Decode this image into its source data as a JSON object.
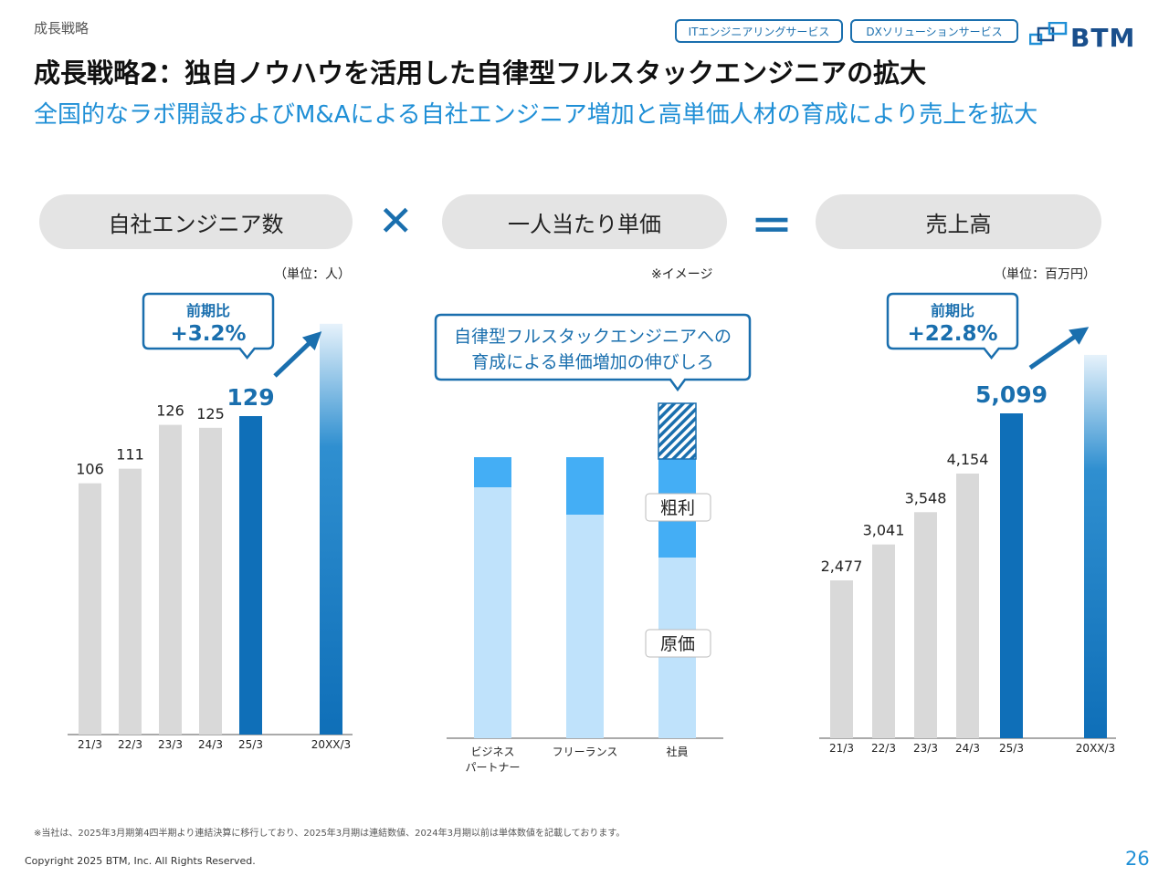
{
  "header": {
    "section_label": "成長戦略",
    "tags": [
      "ITエンジニアリングサービス",
      "DXソリューションサービス"
    ],
    "logo_text": "BTM",
    "title": "成長戦略2：独自ノウハウを活用した自律型フルスタックエンジニアの拡大",
    "subtitle": "全国的なラボ開設およびM&Aによる自社エンジニア増加と高単価人材の育成により売上を拡大"
  },
  "formula": {
    "left_label": "自社エンジニア数",
    "times_symbol": "✕",
    "middle_label": "一人当たり単価",
    "equals_symbol": "＝",
    "right_label": "売上高"
  },
  "colors": {
    "gray_bar": "#d9d9d9",
    "blue_bar": "#0f6fb8",
    "light_blue": "#bfe2fb",
    "mid_blue": "#44aef5",
    "accent_text": "#1f8fd6",
    "dark_blue": "#1a6fae"
  },
  "chart_data": [
    {
      "type": "bar",
      "unit_label": "（単位：人）",
      "categories": [
        "21/3",
        "22/3",
        "23/3",
        "24/3",
        "25/3",
        "20XX/3"
      ],
      "values": [
        106,
        111,
        126,
        125,
        129,
        null
      ],
      "value_labels": [
        "106",
        "111",
        "126",
        "125",
        "129",
        ""
      ],
      "highlight_index": 4,
      "target_index": 5,
      "callout_line1": "前期比",
      "callout_line2": "+3.2%"
    },
    {
      "type": "bar",
      "stacked": true,
      "note": "※イメージ",
      "categories": [
        "ビジネス\nパートナー",
        "フリーランス",
        "社員"
      ],
      "category_lines": [
        [
          "ビジネス",
          "パートナー"
        ],
        [
          "フリーランス"
        ],
        [
          "社員"
        ]
      ],
      "series": [
        {
          "name": "原価",
          "values": [
            275,
            245,
            198
          ]
        },
        {
          "name": "粗利",
          "values": [
            33,
            63,
            108
          ]
        },
        {
          "name": "",
          "values": [
            0,
            0,
            61
          ]
        }
      ],
      "labels": {
        "cost": "原価",
        "profit": "粗利"
      },
      "callout_line1": "自律型フルスタックエンジニアへの",
      "callout_line2": "育成による単価増加の伸びしろ"
    },
    {
      "type": "bar",
      "unit_label": "（単位：百万円）",
      "categories": [
        "21/3",
        "22/3",
        "23/3",
        "24/3",
        "25/3",
        "20XX/3"
      ],
      "values": [
        2477,
        3041,
        3548,
        4154,
        5099,
        null
      ],
      "value_labels": [
        "2,477",
        "3,041",
        "3,548",
        "4,154",
        "5,099",
        ""
      ],
      "highlight_index": 4,
      "target_index": 5,
      "callout_line1": "前期比",
      "callout_line2": "+22.8%"
    }
  ],
  "footer": {
    "footnote": "※当社は、2025年3月期第4四半期より連結決算に移行しており、2025年3月期は連結数値、2024年3月期以前は単体数値を記載しております。",
    "copyright": "Copyright 2025 BTM, Inc. All Rights Reserved.",
    "page_number": "26"
  }
}
